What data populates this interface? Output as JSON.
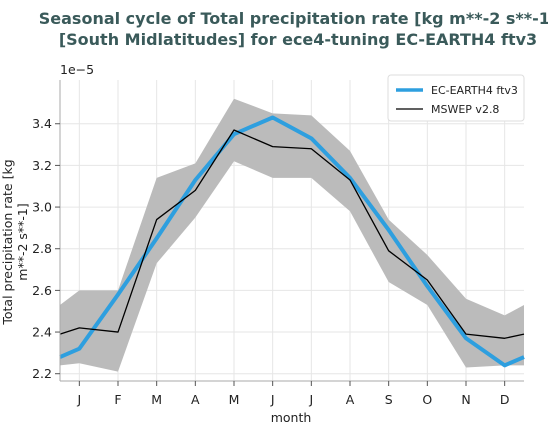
{
  "chart_data": {
    "type": "line",
    "title_lines": [
      "Seasonal cycle of Total precipitation rate [kg m**-2 s**-1]",
      "[South Midlatitudes] for ece4-tuning EC-EARTH4 ftv3"
    ],
    "xlabel": "month",
    "ylabel_lines": [
      "Total precipitation rate [kg",
      "m**-2 s**-1]"
    ],
    "y_scale_label": "1e−5",
    "categories": [
      "J",
      "F",
      "M",
      "A",
      "M",
      "J",
      "J",
      "A",
      "S",
      "O",
      "N",
      "D"
    ],
    "yticks": [
      2.2,
      2.4,
      2.6,
      2.8,
      3.0,
      3.2,
      3.4
    ],
    "ytick_labels": [
      "2.2",
      "2.4",
      "2.6",
      "2.8",
      "3.0",
      "3.2",
      "3.4"
    ],
    "ylim": [
      2.165,
      3.61
    ],
    "grid": true,
    "legend_position": "top-right",
    "series": [
      {
        "name": "EC-EARTH4 ftv3",
        "color": "#2e9fdf",
        "x": [
          0.5,
          1,
          2,
          3,
          4,
          5,
          6,
          7,
          8,
          9,
          10,
          11,
          12,
          12.5
        ],
        "values": [
          2.28,
          2.32,
          2.58,
          2.85,
          3.13,
          3.35,
          3.43,
          3.33,
          3.14,
          2.89,
          2.62,
          2.37,
          2.24,
          2.28
        ]
      },
      {
        "name": "MSWEP v2.8",
        "color": "#000000",
        "x": [
          0.5,
          1,
          2,
          3,
          4,
          5,
          6,
          7,
          8,
          9,
          10,
          11,
          12,
          12.5
        ],
        "values": [
          2.39,
          2.42,
          2.4,
          2.94,
          3.08,
          3.37,
          3.29,
          3.28,
          3.13,
          2.79,
          2.65,
          2.39,
          2.37,
          2.39
        ],
        "band_color": "#bbbbbb",
        "band_low": [
          2.24,
          2.25,
          2.21,
          2.73,
          2.95,
          3.22,
          3.14,
          3.14,
          2.98,
          2.64,
          2.53,
          2.23,
          2.24,
          2.24
        ],
        "band_high": [
          2.53,
          2.6,
          2.6,
          3.14,
          3.21,
          3.52,
          3.45,
          3.44,
          3.27,
          2.94,
          2.77,
          2.56,
          2.48,
          2.53
        ]
      }
    ]
  }
}
